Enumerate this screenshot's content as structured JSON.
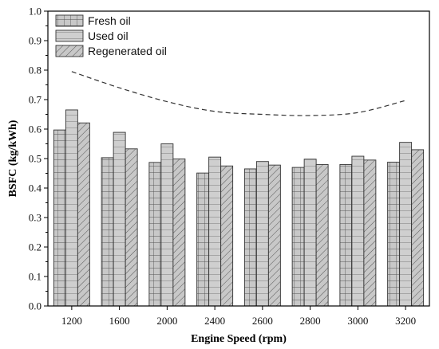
{
  "chart_data": {
    "type": "bar",
    "title": "",
    "xlabel": "Engine Speed (rpm)",
    "ylabel": "BSFC (kg/kWh)",
    "categories": [
      "1200",
      "1600",
      "2000",
      "2400",
      "2600",
      "2800",
      "3000",
      "3200"
    ],
    "ylim": [
      0,
      1.0
    ],
    "yticks": [
      "0.0",
      "0.1",
      "0.2",
      "0.3",
      "0.4",
      "0.5",
      "0.6",
      "0.7",
      "0.8",
      "0.9",
      "1.0"
    ],
    "legend_position": "top-left",
    "grid": false,
    "series": [
      {
        "name": "Fresh oil",
        "values": [
          0.597,
          0.503,
          0.487,
          0.451,
          0.465,
          0.47,
          0.48,
          0.488
        ],
        "pattern": "grid"
      },
      {
        "name": "Used oil",
        "values": [
          0.665,
          0.589,
          0.55,
          0.505,
          0.49,
          0.498,
          0.508,
          0.555
        ],
        "pattern": "hlines"
      },
      {
        "name": "Regenerated oil",
        "values": [
          0.621,
          0.533,
          0.499,
          0.475,
          0.478,
          0.48,
          0.495,
          0.53
        ],
        "pattern": "diag"
      }
    ],
    "trend_curve": {
      "style": "dashed",
      "x": [
        "1200",
        "1600",
        "2000",
        "2400",
        "2600",
        "2800",
        "3000",
        "3200"
      ],
      "y": [
        0.795,
        0.74,
        0.693,
        0.66,
        0.65,
        0.646,
        0.656,
        0.697
      ]
    },
    "colors": {
      "bar_fill": "#c8c8c8",
      "stroke": "#333333",
      "axis": "#000000"
    }
  }
}
